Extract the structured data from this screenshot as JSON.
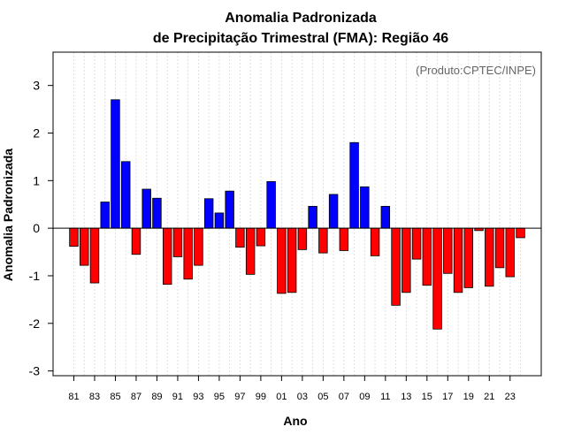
{
  "chart_data": {
    "type": "bar",
    "title_line1": "Anomalia Padronizada",
    "title_line2": "de Precipitação Trimestral (FMA): Região 46",
    "xlabel": "Ano",
    "ylabel": "Anomalia Padronizada",
    "annotation": "(Produto:CPTEC/INPE)",
    "ylim": [
      -3.1,
      3.7
    ],
    "yticks": [
      -3,
      -2,
      -1,
      0,
      1,
      2,
      3
    ],
    "categories": [
      "81",
      "82",
      "83",
      "84",
      "85",
      "86",
      "87",
      "88",
      "89",
      "90",
      "91",
      "92",
      "93",
      "94",
      "95",
      "96",
      "97",
      "98",
      "99",
      "00",
      "01",
      "02",
      "03",
      "04",
      "05",
      "06",
      "07",
      "08",
      "09",
      "10",
      "11",
      "12",
      "13",
      "14",
      "15",
      "16",
      "17",
      "18",
      "19",
      "20",
      "21",
      "22",
      "23",
      "24"
    ],
    "xtick_labels": [
      "81",
      "83",
      "85",
      "87",
      "89",
      "91",
      "93",
      "95",
      "97",
      "99",
      "01",
      "03",
      "05",
      "07",
      "09",
      "11",
      "13",
      "15",
      "17",
      "19",
      "21",
      "23"
    ],
    "values": [
      -0.38,
      -0.78,
      -1.15,
      0.55,
      2.7,
      1.4,
      -0.55,
      0.82,
      0.63,
      -1.18,
      -0.6,
      -1.07,
      -0.78,
      0.62,
      0.32,
      0.78,
      -0.4,
      -0.97,
      -0.37,
      0.98,
      -1.37,
      -1.35,
      -0.45,
      0.46,
      -0.52,
      0.71,
      -0.47,
      1.8,
      0.87,
      -0.58,
      0.46,
      -1.62,
      -1.35,
      -0.65,
      -1.2,
      -2.12,
      -0.95,
      -1.35,
      -1.25,
      -0.05,
      -1.22,
      -0.83,
      -1.02,
      -0.2
    ],
    "positive_color": "#0000ff",
    "negative_color": "#ff0000",
    "grid": true
  }
}
